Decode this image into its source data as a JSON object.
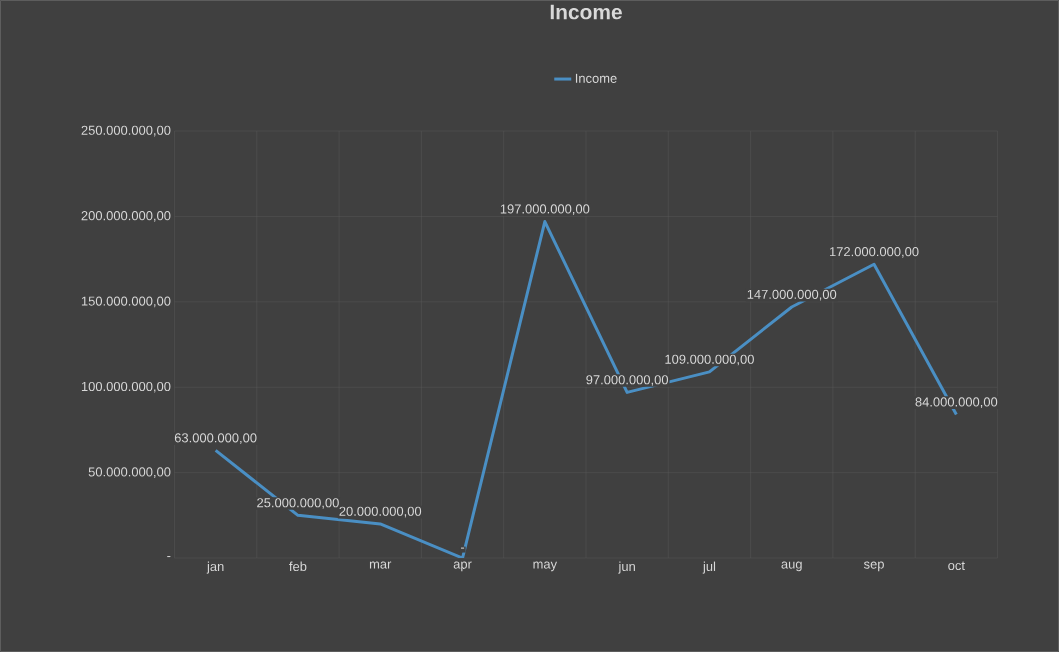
{
  "chart_data": {
    "type": "line",
    "title": "Income",
    "categories": [
      "jan",
      "feb",
      "mar",
      "apr",
      "may",
      "jun",
      "jul",
      "aug",
      "sep",
      "oct"
    ],
    "series": [
      {
        "name": "Income",
        "color": "#4a8fc4",
        "values": [
          63000000,
          25000000,
          20000000,
          0,
          197000000,
          97000000,
          109000000,
          147000000,
          172000000,
          84000000
        ],
        "value_labels": [
          "63.000.000,00",
          "25.000.000,00",
          "20.000.000,00",
          "-",
          "197.000.000,00",
          "97.000.000,00",
          "109.000.000,00",
          "147.000.000,00",
          "172.000.000,00",
          "84.000.000,00"
        ]
      }
    ],
    "ylim": [
      0,
      250000000
    ],
    "yticks": [
      {
        "value": 0,
        "label": "-"
      },
      {
        "value": 50000000,
        "label": "50.000.000,00"
      },
      {
        "value": 100000000,
        "label": "100.000.000,00"
      },
      {
        "value": 150000000,
        "label": "150.000.000,00"
      },
      {
        "value": 200000000,
        "label": "200.000.000,00"
      },
      {
        "value": 250000000,
        "label": "250.000.000,00"
      }
    ],
    "grid": true,
    "legend": "top",
    "marker": "none",
    "line_style": "solid"
  }
}
